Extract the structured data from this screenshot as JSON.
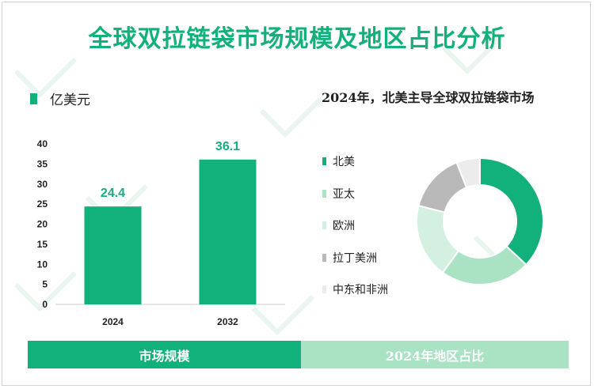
{
  "title": "全球双拉链袋市场规模及地区占比分析",
  "colors": {
    "accent": "#12b07a",
    "light_accent": "#a9e3c4"
  },
  "left_panel": {
    "unit_label": "亿美元"
  },
  "right_panel": {
    "title": "2024年，北美主导全球双拉链袋市场"
  },
  "bottom": {
    "left_label": "市场规模",
    "right_label": "2024年地区占比"
  },
  "chart_data": [
    {
      "type": "bar",
      "categories": [
        "2024",
        "2032"
      ],
      "values": [
        24.4,
        36.1
      ],
      "data_labels": [
        "24.4",
        "36.1"
      ],
      "ylim": [
        0,
        40
      ],
      "yticks": [
        0,
        5,
        10,
        15,
        20,
        25,
        30,
        35,
        40
      ],
      "ylabel": "亿美元",
      "color": "#12b07a",
      "grid": false
    },
    {
      "type": "pie",
      "donut": true,
      "labels": [
        "北美",
        "亚太",
        "欧洲",
        "拉丁美洲",
        "中东和非洲"
      ],
      "values": [
        37,
        23,
        19,
        15,
        6
      ],
      "colors": [
        "#12b07a",
        "#a9e3c4",
        "#d4f0e1",
        "#b9b9b9",
        "#ececec"
      ],
      "legend_placement": "left"
    }
  ]
}
